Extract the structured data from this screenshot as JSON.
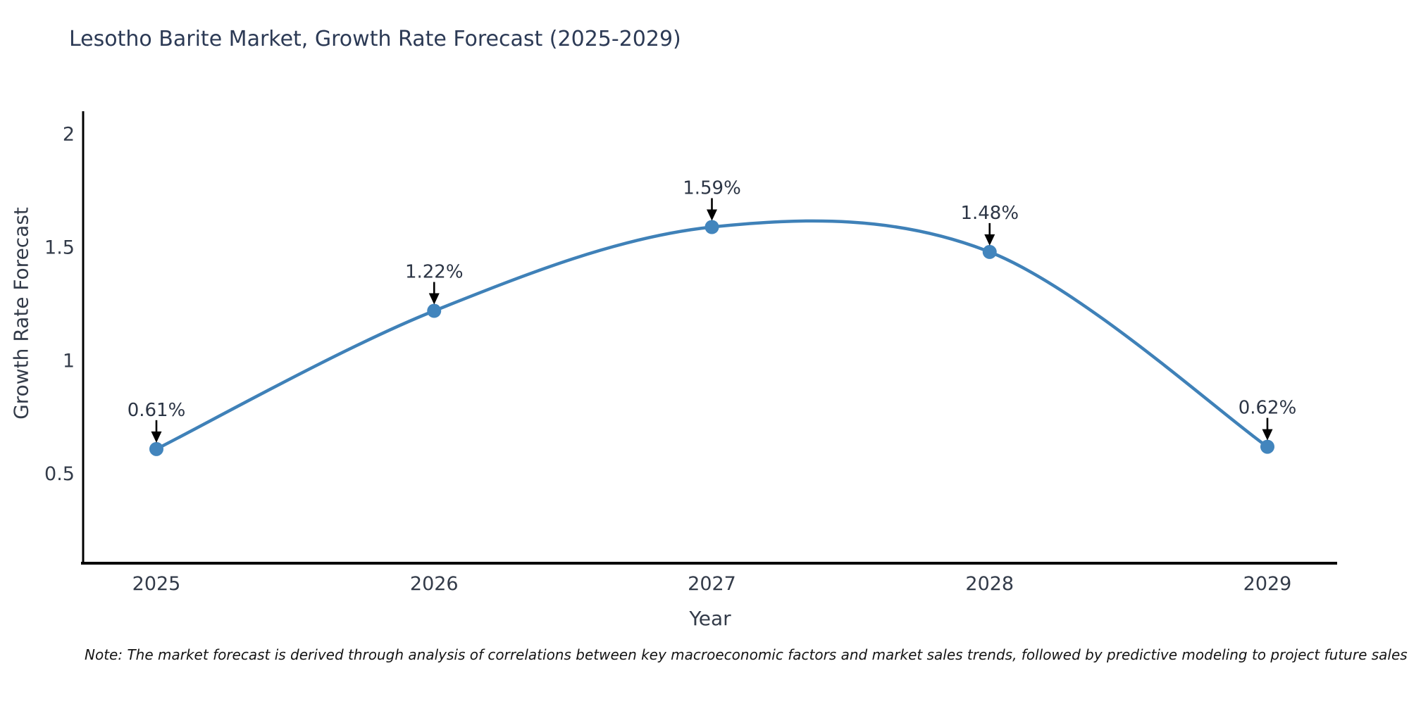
{
  "chart_data": {
    "type": "line",
    "title": "Lesotho Barite Market, Growth Rate Forecast (2025-2029)",
    "xlabel": "Year",
    "ylabel": "Growth Rate Forecast",
    "categories": [
      "2025",
      "2026",
      "2027",
      "2028",
      "2029"
    ],
    "values": [
      0.61,
      1.22,
      1.59,
      1.48,
      0.62
    ],
    "point_labels": [
      "0.61%",
      "1.22%",
      "1.59%",
      "1.48%",
      "0.62%"
    ],
    "yticks": [
      0.5,
      1,
      1.5,
      2
    ],
    "ytick_labels": [
      "0.5",
      "1",
      "1.5",
      "2"
    ],
    "ylim": [
      0.106,
      2.095
    ],
    "grid": false,
    "legend": "none",
    "line_color": "#3f81b8",
    "marker_color": "#4285bd",
    "axis_color": "#000000",
    "annotation_arrow_color": "#000000",
    "tick_label_color": "#333b49",
    "title_color": "#2c3a55",
    "footnote": "Note: The market forecast is derived through analysis of correlations between key macroeconomic factors and market sales trends, followed by predictive modeling to project future sales"
  }
}
